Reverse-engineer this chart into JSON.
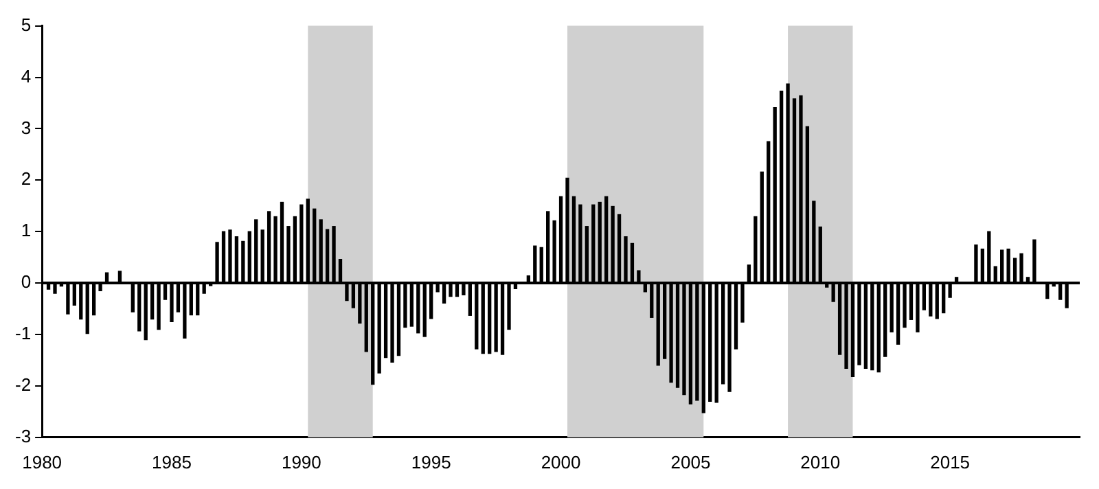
{
  "chart_data": {
    "type": "bar",
    "x": [
      1980.25,
      1980.5,
      1980.75,
      1981,
      1981.25,
      1981.5,
      1981.75,
      1982,
      1982.25,
      1982.5,
      1982.75,
      1983,
      1983.25,
      1983.5,
      1983.75,
      1984,
      1984.25,
      1984.5,
      1984.75,
      1985,
      1985.25,
      1985.5,
      1985.75,
      1986,
      1986.25,
      1986.5,
      1986.75,
      1987,
      1987.25,
      1987.5,
      1987.75,
      1988,
      1988.25,
      1988.5,
      1988.75,
      1989,
      1989.25,
      1989.5,
      1989.75,
      1990,
      1990.25,
      1990.5,
      1990.75,
      1991,
      1991.25,
      1991.5,
      1991.75,
      1992,
      1992.25,
      1992.5,
      1992.75,
      1993,
      1993.25,
      1993.5,
      1993.75,
      1994,
      1994.25,
      1994.5,
      1994.75,
      1995,
      1995.25,
      1995.5,
      1995.75,
      1996,
      1996.25,
      1996.5,
      1996.75,
      1997,
      1997.25,
      1997.5,
      1997.75,
      1998,
      1998.25,
      1998.5,
      1998.75,
      1999,
      1999.25,
      1999.5,
      1999.75,
      2000,
      2000.25,
      2000.5,
      2000.75,
      2001,
      2001.25,
      2001.5,
      2001.75,
      2002,
      2002.25,
      2002.5,
      2002.75,
      2003,
      2003.25,
      2003.5,
      2003.75,
      2004,
      2004.25,
      2004.5,
      2004.75,
      2005,
      2005.25,
      2005.5,
      2005.75,
      2006,
      2006.25,
      2006.5,
      2006.75,
      2007,
      2007.25,
      2007.5,
      2007.75,
      2008,
      2008.25,
      2008.5,
      2008.75,
      2009,
      2009.25,
      2009.5,
      2009.75,
      2010,
      2010.25,
      2010.5,
      2010.75,
      2011,
      2011.25,
      2011.5,
      2011.75,
      2012,
      2012.25,
      2012.5,
      2012.75,
      2013,
      2013.25,
      2013.5,
      2013.75,
      2014,
      2014.25,
      2014.5,
      2014.75,
      2015,
      2015.25,
      2015.5,
      2015.75,
      2016,
      2016.25,
      2016.5,
      2016.75,
      2017,
      2017.25,
      2017.5,
      2017.75,
      2018,
      2018.25,
      2018.5,
      2018.75,
      2019,
      2019.25,
      2019.5
    ],
    "values": [
      -0.12,
      -0.2,
      -0.06,
      -0.6,
      -0.43,
      -0.7,
      -0.98,
      -0.62,
      -0.15,
      0.2,
      0,
      0.23,
      0,
      -0.56,
      -0.93,
      -1.1,
      -0.7,
      -0.9,
      -0.32,
      -0.75,
      -0.56,
      -1.07,
      -0.62,
      -0.62,
      -0.2,
      -0.05,
      0.79,
      1.0,
      1.03,
      0.9,
      0.81,
      1.0,
      1.23,
      1.03,
      1.39,
      1.29,
      1.57,
      1.1,
      1.29,
      1.52,
      1.63,
      1.44,
      1.23,
      1.04,
      1.1,
      0.46,
      -0.34,
      -0.48,
      -0.78,
      -1.33,
      -1.97,
      -1.75,
      -1.45,
      -1.54,
      -1.41,
      -0.86,
      -0.84,
      -0.97,
      -1.04,
      -0.69,
      -0.17,
      -0.39,
      -0.26,
      -0.26,
      -0.23,
      -0.63,
      -1.28,
      -1.37,
      -1.37,
      -1.33,
      -1.39,
      -0.9,
      -0.11,
      0,
      0.14,
      0.72,
      0.69,
      1.39,
      1.21,
      1.68,
      2.04,
      1.68,
      1.52,
      1.1,
      1.52,
      1.57,
      1.68,
      1.49,
      1.33,
      0.9,
      0.77,
      0.24,
      -0.17,
      -0.67,
      -1.6,
      -1.47,
      -1.93,
      -2.03,
      -2.17,
      -2.35,
      -2.28,
      -2.52,
      -2.3,
      -2.32,
      -1.96,
      -2.11,
      -1.28,
      -0.76,
      0.35,
      1.29,
      2.16,
      2.75,
      3.41,
      3.73,
      3.87,
      3.58,
      3.64,
      3.04,
      1.59,
      1.09,
      -0.08,
      -0.36,
      -1.39,
      -1.66,
      -1.82,
      -1.59,
      -1.66,
      -1.69,
      -1.73,
      -1.43,
      -0.95,
      -1.19,
      -0.86,
      -0.71,
      -0.95,
      -0.52,
      -0.64,
      -0.69,
      -0.58,
      -0.28,
      0.11,
      0,
      0,
      0.74,
      0.66,
      1.0,
      0.32,
      0.64,
      0.66,
      0.48,
      0.57,
      0.11,
      0.84,
      0,
      -0.3,
      -0.06,
      -0.32,
      -0.48
    ],
    "color": "#000000",
    "xlim": [
      1980,
      2020
    ],
    "xticks": [
      1980,
      1985,
      1990,
      1995,
      2000,
      2005,
      2010,
      2015
    ],
    "ylim": [
      -3,
      5
    ],
    "yticks": [
      -3,
      -2,
      -1,
      0,
      1,
      2,
      3,
      4,
      5
    ],
    "bands": [
      {
        "axis": "x",
        "from": 1990.25,
        "to": 1992.75,
        "color": "#d0d0d0"
      },
      {
        "axis": "x",
        "from": 2000.25,
        "to": 2005.5,
        "color": "#d0d0d0"
      },
      {
        "axis": "x",
        "from": 2008.75,
        "to": 2011.25,
        "color": "#d0d0d0"
      }
    ],
    "ref_lines": [
      {
        "axis": "y",
        "value": 0,
        "color": "#000000"
      }
    ],
    "grid": false,
    "legend": false
  }
}
